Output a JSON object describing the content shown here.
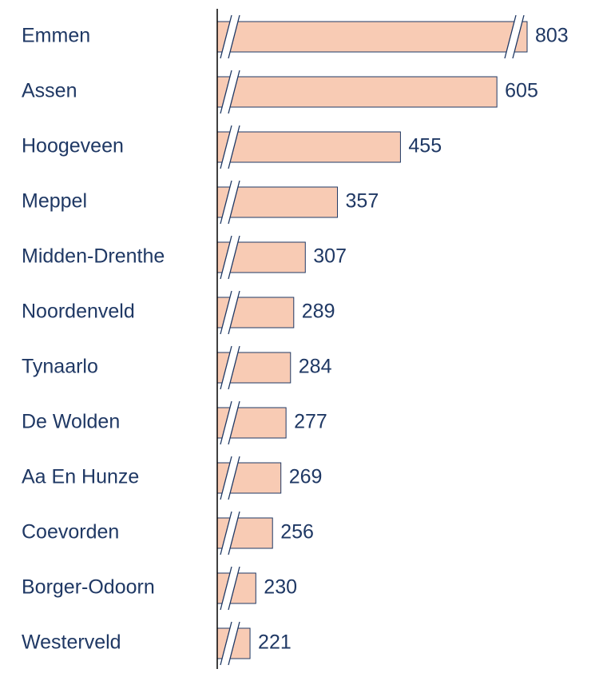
{
  "chart_data": {
    "type": "bar",
    "orientation": "horizontal",
    "categories": [
      "Emmen",
      "Assen",
      "Hoogeveen",
      "Meppel",
      "Midden-Drenthe",
      "Noordenveld",
      "Tynaarlo",
      "De Wolden",
      "Aa En Hunze",
      "Coevorden",
      "Borger-Odoorn",
      "Westerveld"
    ],
    "values": [
      803,
      605,
      455,
      357,
      307,
      289,
      284,
      277,
      269,
      256,
      230,
      221
    ],
    "color": "#f8cbb4",
    "edge_color": "#1f3864",
    "xlim": [
      170,
      652
    ],
    "axis_break": true
  }
}
